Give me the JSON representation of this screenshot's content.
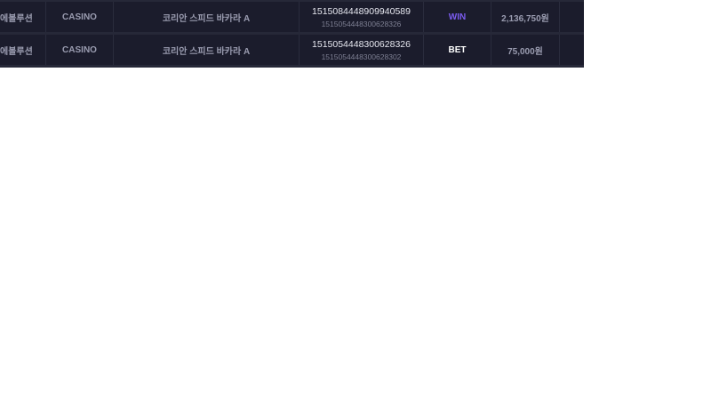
{
  "rows": [
    {
      "provider": "에볼루션",
      "category": "CASINO",
      "game": "코리안 스피드 바카라 A",
      "transaction_id": "1515084448909940589",
      "ref_id": "1515054448300628326",
      "type": "WIN",
      "type_color": "#7b5cf0",
      "amount": "2,136,750원"
    },
    {
      "provider": "에볼루션",
      "category": "CASINO",
      "game": "코리안 스피드 바카라 A",
      "transaction_id": "1515054448300628326",
      "ref_id": "1515054448300628302",
      "type": "BET",
      "type_color": "#ffffff",
      "amount": "75,000원"
    }
  ]
}
